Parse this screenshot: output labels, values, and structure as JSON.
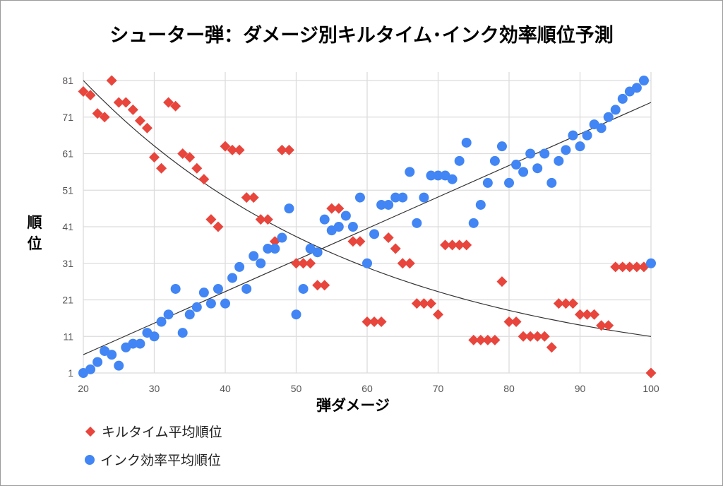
{
  "chart_data": {
    "type": "scatter",
    "title": "シューター弾：ダメージ別キルタイム･インク効率順位予測",
    "xlabel": "弾ダメージ",
    "ylabel": "順位",
    "xlim": [
      20,
      100
    ],
    "ylim": [
      1,
      81
    ],
    "x_ticks": [
      "20",
      "30",
      "40",
      "50",
      "60",
      "70",
      "80",
      "90",
      "100"
    ],
    "y_ticks": [
      "1",
      "11",
      "21",
      "31",
      "41",
      "51",
      "61",
      "71",
      "81"
    ],
    "grid": true,
    "legend_position": "bottom-left",
    "series": [
      {
        "name": "キルタイム平均順位",
        "marker": "diamond",
        "color": "#e8453c",
        "trendline": "exponential",
        "points": [
          [
            20,
            78
          ],
          [
            21,
            77
          ],
          [
            22,
            72
          ],
          [
            23,
            71
          ],
          [
            24,
            81
          ],
          [
            25,
            75
          ],
          [
            26,
            75
          ],
          [
            27,
            73
          ],
          [
            28,
            70
          ],
          [
            29,
            68
          ],
          [
            30,
            60
          ],
          [
            31,
            57
          ],
          [
            32,
            75
          ],
          [
            33,
            74
          ],
          [
            34,
            61
          ],
          [
            35,
            60
          ],
          [
            36,
            57
          ],
          [
            37,
            54
          ],
          [
            38,
            43
          ],
          [
            39,
            41
          ],
          [
            40,
            63
          ],
          [
            41,
            62
          ],
          [
            42,
            62
          ],
          [
            43,
            49
          ],
          [
            44,
            49
          ],
          [
            45,
            43
          ],
          [
            46,
            43
          ],
          [
            47,
            37
          ],
          [
            48,
            62
          ],
          [
            49,
            62
          ],
          [
            50,
            31
          ],
          [
            51,
            31
          ],
          [
            52,
            31
          ],
          [
            53,
            25
          ],
          [
            54,
            25
          ],
          [
            55,
            46
          ],
          [
            56,
            46
          ],
          [
            58,
            37
          ],
          [
            59,
            37
          ],
          [
            60,
            15
          ],
          [
            61,
            15
          ],
          [
            62,
            15
          ],
          [
            63,
            38
          ],
          [
            64,
            35
          ],
          [
            65,
            31
          ],
          [
            66,
            31
          ],
          [
            67,
            20
          ],
          [
            68,
            20
          ],
          [
            69,
            20
          ],
          [
            70,
            17
          ],
          [
            71,
            36
          ],
          [
            72,
            36
          ],
          [
            73,
            36
          ],
          [
            74,
            36
          ],
          [
            75,
            10
          ],
          [
            76,
            10
          ],
          [
            77,
            10
          ],
          [
            78,
            10
          ],
          [
            79,
            26
          ],
          [
            80,
            15
          ],
          [
            81,
            15
          ],
          [
            82,
            11
          ],
          [
            83,
            11
          ],
          [
            84,
            11
          ],
          [
            85,
            11
          ],
          [
            86,
            8
          ],
          [
            87,
            20
          ],
          [
            88,
            20
          ],
          [
            89,
            20
          ],
          [
            90,
            17
          ],
          [
            91,
            17
          ],
          [
            92,
            17
          ],
          [
            93,
            14
          ],
          [
            94,
            14
          ],
          [
            95,
            30
          ],
          [
            96,
            30
          ],
          [
            97,
            30
          ],
          [
            98,
            30
          ],
          [
            99,
            30
          ],
          [
            100,
            1
          ]
        ],
        "trend_points": [
          [
            20,
            81
          ],
          [
            30,
            63.5
          ],
          [
            40,
            49.5
          ],
          [
            50,
            38.5
          ],
          [
            60,
            30
          ],
          [
            70,
            23.5
          ],
          [
            80,
            18.5
          ],
          [
            90,
            14.5
          ],
          [
            100,
            11
          ]
        ]
      },
      {
        "name": "インク効率平均順位",
        "marker": "circle",
        "color": "#4285f4",
        "trendline": "linear",
        "points": [
          [
            20,
            1
          ],
          [
            21,
            2
          ],
          [
            22,
            4
          ],
          [
            23,
            7
          ],
          [
            24,
            6
          ],
          [
            25,
            3
          ],
          [
            26,
            8
          ],
          [
            27,
            9
          ],
          [
            28,
            9
          ],
          [
            29,
            12
          ],
          [
            30,
            11
          ],
          [
            31,
            15
          ],
          [
            32,
            17
          ],
          [
            33,
            24
          ],
          [
            34,
            12
          ],
          [
            35,
            17
          ],
          [
            36,
            19
          ],
          [
            37,
            23
          ],
          [
            38,
            20
          ],
          [
            39,
            24
          ],
          [
            40,
            20
          ],
          [
            41,
            27
          ],
          [
            42,
            30
          ],
          [
            43,
            24
          ],
          [
            44,
            33
          ],
          [
            45,
            31
          ],
          [
            46,
            35
          ],
          [
            47,
            35
          ],
          [
            48,
            38
          ],
          [
            49,
            46
          ],
          [
            50,
            17
          ],
          [
            51,
            24
          ],
          [
            52,
            35
          ],
          [
            53,
            34
          ],
          [
            54,
            43
          ],
          [
            55,
            40
          ],
          [
            56,
            41
          ],
          [
            57,
            44
          ],
          [
            58,
            41
          ],
          [
            59,
            49
          ],
          [
            60,
            31
          ],
          [
            61,
            39
          ],
          [
            62,
            47
          ],
          [
            63,
            47
          ],
          [
            64,
            49
          ],
          [
            65,
            49
          ],
          [
            66,
            56
          ],
          [
            67,
            42
          ],
          [
            68,
            49
          ],
          [
            69,
            55
          ],
          [
            70,
            55
          ],
          [
            71,
            55
          ],
          [
            72,
            54
          ],
          [
            73,
            59
          ],
          [
            74,
            64
          ],
          [
            75,
            42
          ],
          [
            76,
            47
          ],
          [
            77,
            53
          ],
          [
            78,
            59
          ],
          [
            79,
            63
          ],
          [
            80,
            53
          ],
          [
            81,
            58
          ],
          [
            82,
            56
          ],
          [
            83,
            61
          ],
          [
            84,
            57
          ],
          [
            85,
            61
          ],
          [
            86,
            53
          ],
          [
            87,
            59
          ],
          [
            88,
            62
          ],
          [
            89,
            66
          ],
          [
            90,
            63
          ],
          [
            91,
            66
          ],
          [
            92,
            69
          ],
          [
            93,
            68
          ],
          [
            94,
            71
          ],
          [
            95,
            73
          ],
          [
            96,
            76
          ],
          [
            97,
            78
          ],
          [
            98,
            79
          ],
          [
            99,
            81
          ],
          [
            100,
            31
          ]
        ],
        "trend_points": [
          [
            20,
            6
          ],
          [
            100,
            75
          ]
        ]
      }
    ]
  }
}
